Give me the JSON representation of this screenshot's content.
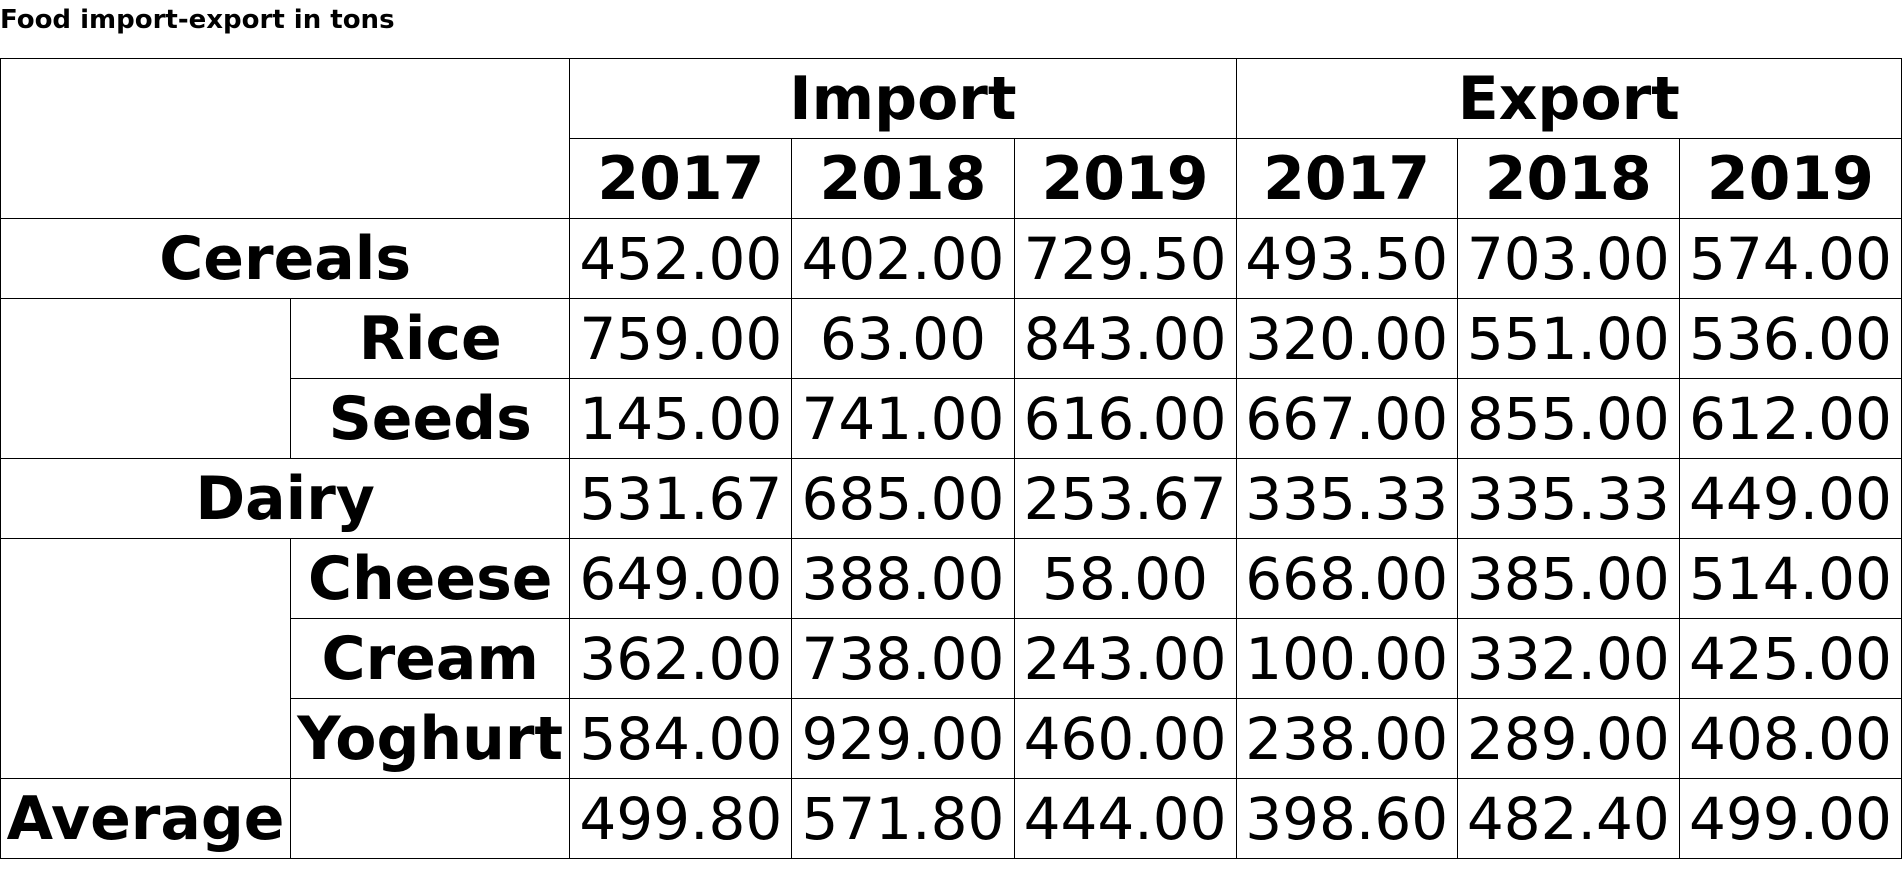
{
  "title": "Food import-export in tons",
  "groups": [
    {
      "label": "Import",
      "years": [
        "2017",
        "2018",
        "2019"
      ]
    },
    {
      "label": "Export",
      "years": [
        "2017",
        "2018",
        "2019"
      ]
    }
  ],
  "rows": [
    {
      "label": "Cereals",
      "values": [
        "452.00",
        "402.00",
        "729.50",
        "493.50",
        "703.00",
        "574.00"
      ],
      "children": [
        {
          "label": "Rice",
          "values": [
            "759.00",
            "63.00",
            "843.00",
            "320.00",
            "551.00",
            "536.00"
          ]
        },
        {
          "label": "Seeds",
          "values": [
            "145.00",
            "741.00",
            "616.00",
            "667.00",
            "855.00",
            "612.00"
          ]
        }
      ]
    },
    {
      "label": "Dairy",
      "values": [
        "531.67",
        "685.00",
        "253.67",
        "335.33",
        "335.33",
        "449.00"
      ],
      "children": [
        {
          "label": "Cheese",
          "values": [
            "649.00",
            "388.00",
            "58.00",
            "668.00",
            "385.00",
            "514.00"
          ]
        },
        {
          "label": "Cream",
          "values": [
            "362.00",
            "738.00",
            "243.00",
            "100.00",
            "332.00",
            "425.00"
          ]
        },
        {
          "label": "Yoghurt",
          "values": [
            "584.00",
            "929.00",
            "460.00",
            "238.00",
            "289.00",
            "408.00"
          ]
        }
      ]
    }
  ],
  "footer": {
    "label": "Average",
    "values": [
      "499.80",
      "571.80",
      "444.00",
      "398.60",
      "482.40",
      "499.00"
    ]
  }
}
